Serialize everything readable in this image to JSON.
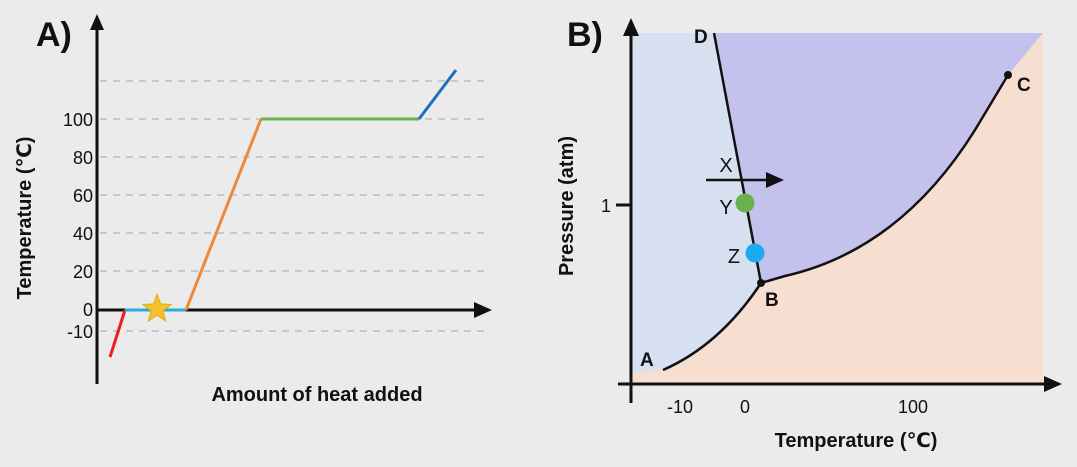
{
  "panel_a": {
    "label": "A)",
    "ylabel": "Temperature (℃)",
    "xlabel": "Amount of heat added",
    "y_ticks": [
      "100",
      "80",
      "60",
      "40",
      "20",
      "0",
      "-10"
    ],
    "colors": {
      "solid_heating": "#e8201e",
      "melting": "#2aa8e0",
      "liquid_heating": "#f0883a",
      "boiling": "#6ab04c",
      "gas_heating": "#1f6fbf",
      "star": "#f5c02a",
      "gridline": "#bdbdbd"
    },
    "marker_icon": "star-icon"
  },
  "panel_b": {
    "label": "B)",
    "ylabel": "Pressure (atm)",
    "xlabel": "Temperature (℃)",
    "x_ticks": [
      "-10",
      "0",
      "100"
    ],
    "y_ticks": [
      "1"
    ],
    "points": {
      "A": "A",
      "B": "B",
      "C": "C",
      "D": "D"
    },
    "markers": {
      "X": "X",
      "Y": "Y",
      "Z": "Z"
    },
    "colors": {
      "solid_region": "#d6e0f0",
      "liquid_region": "#c4c2ec",
      "gas_region": "#f6dfd0",
      "marker_y": "#6ab04c",
      "marker_z": "#1eaaf0",
      "line": "#111111"
    },
    "arrow_icon": "arrow-right-icon"
  }
}
